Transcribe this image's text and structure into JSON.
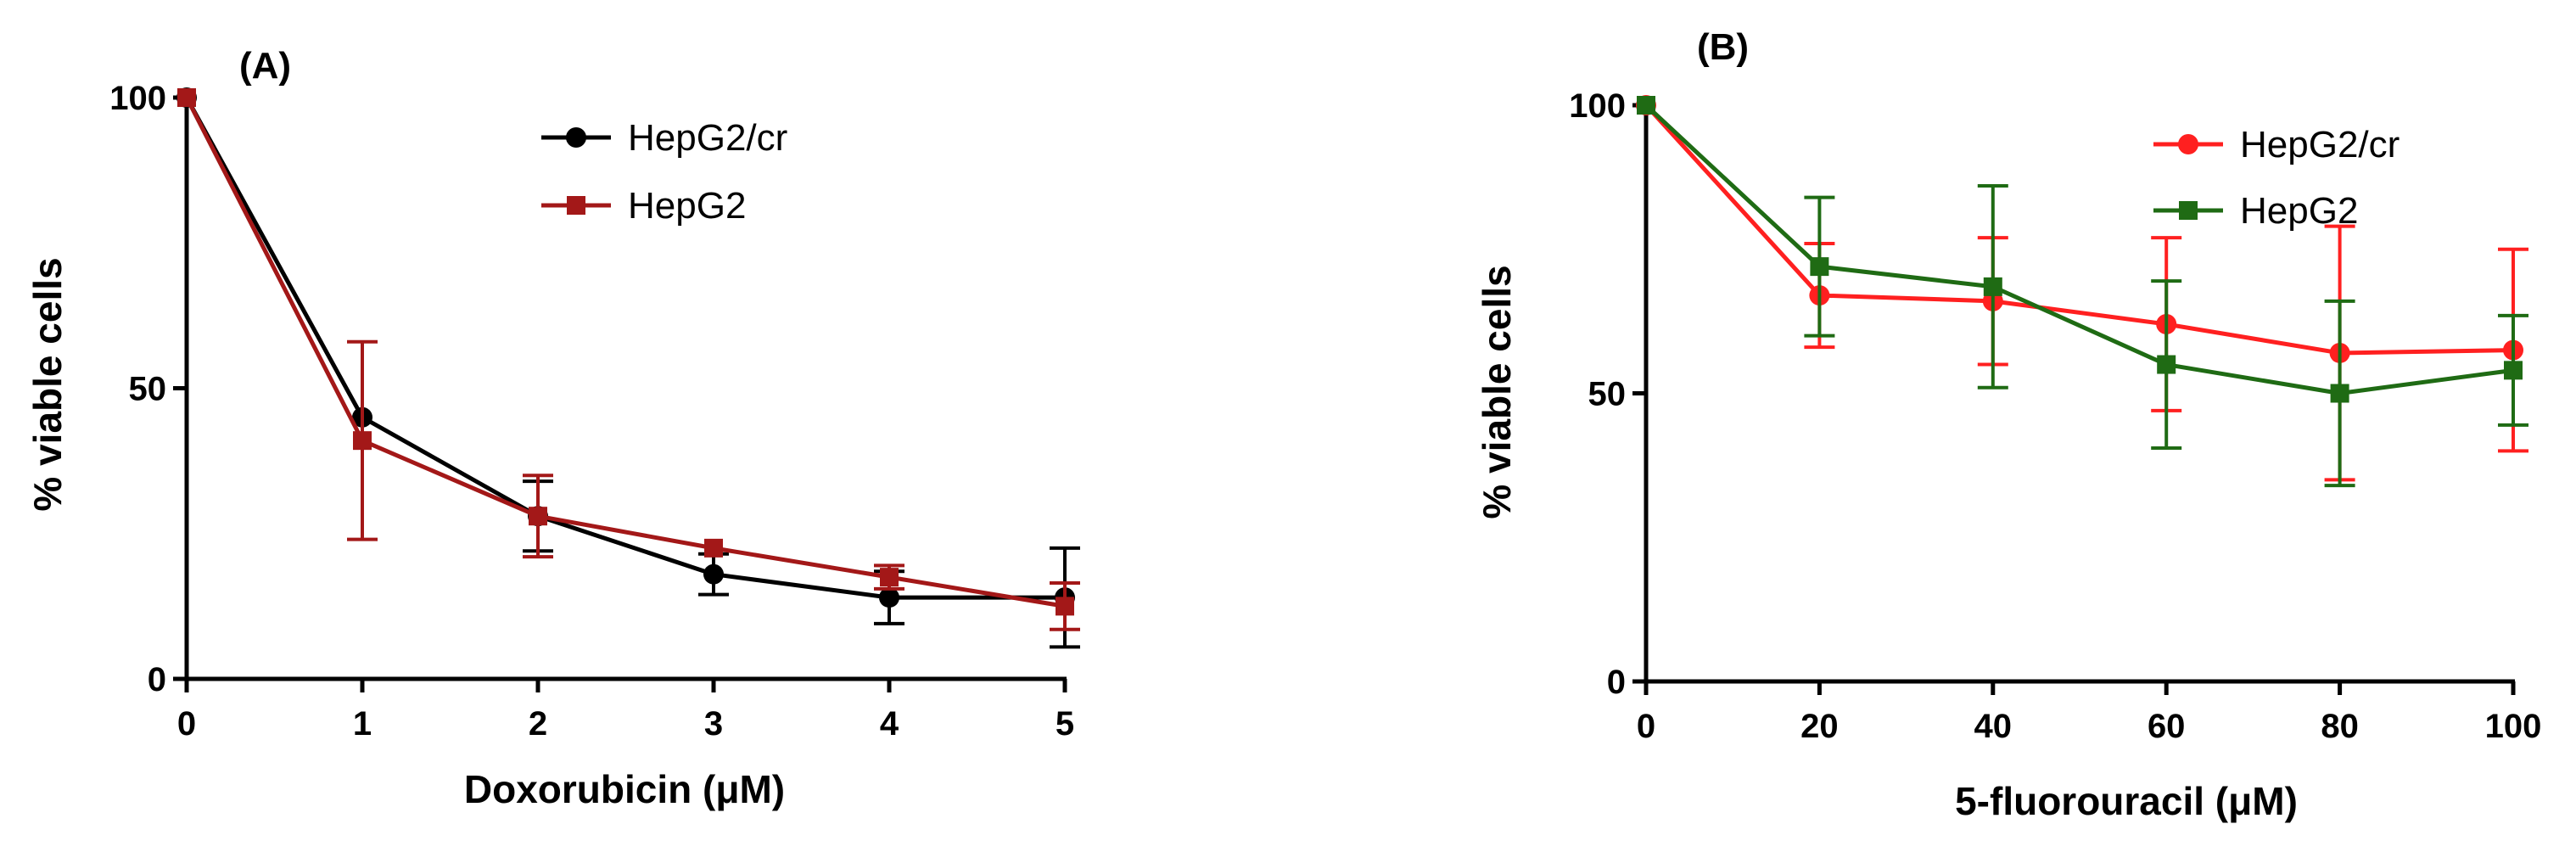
{
  "chart_data": [
    {
      "type": "line",
      "panel_label": "(A)",
      "xlabel": "Doxorubicin (μM)",
      "ylabel": "% viable cells",
      "x": [
        0,
        1,
        2,
        3,
        4,
        5
      ],
      "xticks": [
        "0",
        "1",
        "2",
        "3",
        "4",
        "5"
      ],
      "yticks": [
        "0",
        "50",
        "100"
      ],
      "xlim": [
        0,
        5
      ],
      "ylim": [
        0,
        100
      ],
      "legend_position": "top-right",
      "grid": false,
      "series": [
        {
          "name": "HepG2/cr",
          "color": "#000000",
          "marker": "circle",
          "values": [
            100,
            45,
            28,
            18,
            14,
            14
          ],
          "error": [
            0,
            0,
            6,
            3.5,
            4.5,
            8.5
          ]
        },
        {
          "name": "HepG2",
          "color": "#a31818",
          "marker": "square",
          "values": [
            100,
            41,
            28,
            22.5,
            17.5,
            12.5
          ],
          "error": [
            0,
            17,
            7,
            0,
            2,
            4
          ]
        }
      ]
    },
    {
      "type": "line",
      "panel_label": "(B)",
      "xlabel": "5-fluorouracil (μM)",
      "ylabel": "% viable cells",
      "x": [
        0,
        20,
        40,
        60,
        80,
        100
      ],
      "xticks": [
        "0",
        "20",
        "40",
        "60",
        "80",
        "100"
      ],
      "yticks": [
        "0",
        "50",
        "100"
      ],
      "xlim": [
        0,
        100
      ],
      "ylim": [
        0,
        100
      ],
      "legend_position": "top-right",
      "grid": false,
      "series": [
        {
          "name": "HepG2/cr",
          "color": "#ff2020",
          "marker": "circle",
          "values": [
            100,
            67,
            66,
            62,
            57,
            57.5
          ],
          "error": [
            0,
            9,
            11,
            15,
            22,
            17.5
          ]
        },
        {
          "name": "HepG2",
          "color": "#1f6b14",
          "marker": "square",
          "values": [
            100,
            72,
            68.5,
            55,
            50,
            54
          ],
          "error": [
            0,
            12,
            17.5,
            14.5,
            16,
            9.5
          ]
        }
      ]
    }
  ]
}
